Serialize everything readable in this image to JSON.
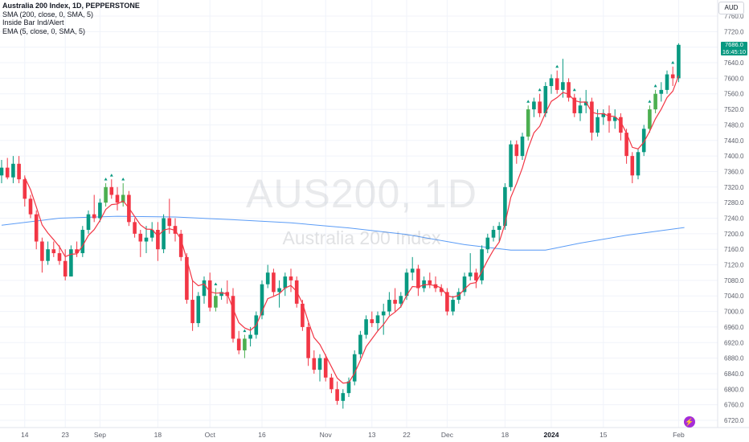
{
  "legend": {
    "title": "Australia 200 Index, 1D, PEPPERSTONE",
    "indicators": [
      "SMA (200, close, 0, SMA, 5)",
      "Inside Bar Ind/Alert",
      "EMA (5, close, 0, SMA, 5)"
    ]
  },
  "watermark": {
    "symbol": "AUS200, 1D",
    "name": "Australia 200 Index"
  },
  "currency": "AUD",
  "last_price": {
    "value": "7686.0",
    "countdown": "16:45:10",
    "color": "#089981"
  },
  "colors": {
    "up": "#089981",
    "down": "#f23645",
    "inside_up": "#4caf50",
    "sma": "#5b9cf6",
    "ema": "#f23645",
    "inside_marker": "#089981"
  },
  "chart_data": {
    "type": "candlestick",
    "title": "Australia 200 Index, 1D, PEPPERSTONE",
    "y_axis": {
      "range": [
        6700,
        7790
      ],
      "ticks": [
        7760,
        7720,
        7680,
        7640,
        7600,
        7560,
        7520,
        7480,
        7440,
        7400,
        7360,
        7320,
        7280,
        7240,
        7200,
        7160,
        7120,
        7080,
        7040,
        7000,
        6960,
        6920,
        6880,
        6840,
        6800,
        6760,
        6720
      ],
      "tick_labels": [
        "7760.0",
        "7720.0",
        "7680.0",
        "7640.0",
        "7600.0",
        "7560.0",
        "7520.0",
        "7480.0",
        "7440.0",
        "7400.0",
        "7360.0",
        "7320.0",
        "7280.0",
        "7240.0",
        "7200.0",
        "7160.0",
        "7120.0",
        "7080.0",
        "7040.0",
        "7000.0",
        "6960.0",
        "6920.0",
        "6880.0",
        "6840.0",
        "6800.0",
        "6760.0",
        "6720.0"
      ]
    },
    "x_axis": {
      "ticks": [
        {
          "index": 4,
          "label": "14",
          "bold": false
        },
        {
          "index": 11,
          "label": "23",
          "bold": false
        },
        {
          "index": 17,
          "label": "Sep",
          "bold": false
        },
        {
          "index": 27,
          "label": "18",
          "bold": false
        },
        {
          "index": 36,
          "label": "Oct",
          "bold": false
        },
        {
          "index": 45,
          "label": "16",
          "bold": false
        },
        {
          "index": 56,
          "label": "Nov",
          "bold": false
        },
        {
          "index": 64,
          "label": "13",
          "bold": false
        },
        {
          "index": 70,
          "label": "22",
          "bold": false
        },
        {
          "index": 77,
          "label": "Dec",
          "bold": false
        },
        {
          "index": 87,
          "label": "18",
          "bold": false
        },
        {
          "index": 95,
          "label": "2024",
          "bold": true
        },
        {
          "index": 104,
          "label": "15",
          "bold": false
        },
        {
          "index": 117,
          "label": "Feb",
          "bold": false
        }
      ]
    },
    "candles": [
      [
        7350,
        7390,
        7330,
        7370
      ],
      [
        7370,
        7395,
        7340,
        7345
      ],
      [
        7345,
        7400,
        7330,
        7380
      ],
      [
        7380,
        7400,
        7330,
        7340
      ],
      [
        7340,
        7350,
        7270,
        7290
      ],
      [
        7290,
        7300,
        7240,
        7250
      ],
      [
        7250,
        7260,
        7160,
        7180
      ],
      [
        7180,
        7190,
        7100,
        7130
      ],
      [
        7130,
        7180,
        7120,
        7160
      ],
      [
        7160,
        7180,
        7140,
        7150
      ],
      [
        7150,
        7170,
        7120,
        7130
      ],
      [
        7130,
        7160,
        7080,
        7090
      ],
      [
        7090,
        7170,
        7090,
        7160
      ],
      [
        7160,
        7180,
        7140,
        7150
      ],
      [
        7150,
        7220,
        7140,
        7210
      ],
      [
        7210,
        7260,
        7200,
        7250
      ],
      [
        7250,
        7300,
        7230,
        7240
      ],
      [
        7240,
        7290,
        7230,
        7280
      ],
      [
        7280,
        7330,
        7270,
        7320
      ],
      [
        7320,
        7340,
        7290,
        7300
      ],
      [
        7300,
        7320,
        7260,
        7280
      ],
      [
        7280,
        7330,
        7270,
        7300
      ],
      [
        7300,
        7310,
        7220,
        7230
      ],
      [
        7230,
        7240,
        7190,
        7200
      ],
      [
        7200,
        7210,
        7140,
        7180
      ],
      [
        7180,
        7220,
        7150,
        7190
      ],
      [
        7190,
        7230,
        7180,
        7210
      ],
      [
        7210,
        7230,
        7130,
        7160
      ],
      [
        7160,
        7250,
        7150,
        7240
      ],
      [
        7240,
        7290,
        7200,
        7220
      ],
      [
        7220,
        7240,
        7180,
        7200
      ],
      [
        7200,
        7210,
        7130,
        7140
      ],
      [
        7140,
        7150,
        7020,
        7030
      ],
      [
        7030,
        7080,
        6950,
        6970
      ],
      [
        6970,
        7050,
        6960,
        7040
      ],
      [
        7040,
        7090,
        7020,
        7080
      ],
      [
        7080,
        7100,
        7000,
        7010
      ],
      [
        7010,
        7060,
        7000,
        7040
      ],
      [
        7040,
        7060,
        7030,
        7050
      ],
      [
        7050,
        7080,
        7020,
        7040
      ],
      [
        7040,
        7060,
        6920,
        6930
      ],
      [
        6930,
        6950,
        6890,
        6900
      ],
      [
        6900,
        6940,
        6880,
        6930
      ],
      [
        6930,
        6960,
        6910,
        6940
      ],
      [
        6940,
        7000,
        6930,
        6990
      ],
      [
        6990,
        7080,
        6980,
        7070
      ],
      [
        7070,
        7120,
        7060,
        7100
      ],
      [
        7100,
        7110,
        7040,
        7050
      ],
      [
        7050,
        7080,
        7010,
        7060
      ],
      [
        7060,
        7100,
        7040,
        7090
      ],
      [
        7090,
        7110,
        7050,
        7080
      ],
      [
        7080,
        7090,
        7010,
        7020
      ],
      [
        7020,
        7030,
        6950,
        6960
      ],
      [
        6960,
        6970,
        6860,
        6880
      ],
      [
        6880,
        6900,
        6840,
        6850
      ],
      [
        6850,
        6890,
        6820,
        6880
      ],
      [
        6880,
        6890,
        6820,
        6830
      ],
      [
        6830,
        6840,
        6790,
        6800
      ],
      [
        6800,
        6820,
        6760,
        6770
      ],
      [
        6770,
        6800,
        6750,
        6790
      ],
      [
        6790,
        6830,
        6780,
        6820
      ],
      [
        6820,
        6900,
        6810,
        6890
      ],
      [
        6890,
        6950,
        6880,
        6940
      ],
      [
        6940,
        6990,
        6930,
        6980
      ],
      [
        6980,
        7000,
        6960,
        6970
      ],
      [
        6970,
        7000,
        6950,
        6990
      ],
      [
        6990,
        7020,
        6940,
        7000
      ],
      [
        7000,
        7050,
        6990,
        7030
      ],
      [
        7030,
        7060,
        7000,
        7020
      ],
      [
        7020,
        7050,
        7010,
        7040
      ],
      [
        7040,
        7110,
        7030,
        7100
      ],
      [
        7100,
        7140,
        7080,
        7110
      ],
      [
        7110,
        7120,
        7040,
        7060
      ],
      [
        7060,
        7090,
        7050,
        7080
      ],
      [
        7080,
        7100,
        7060,
        7070
      ],
      [
        7070,
        7090,
        7050,
        7060
      ],
      [
        7060,
        7070,
        7040,
        7050
      ],
      [
        7050,
        7060,
        6990,
        7000
      ],
      [
        7000,
        7040,
        6990,
        7030
      ],
      [
        7030,
        7060,
        7020,
        7050
      ],
      [
        7050,
        7100,
        7040,
        7090
      ],
      [
        7090,
        7150,
        7080,
        7100
      ],
      [
        7100,
        7110,
        7060,
        7080
      ],
      [
        7080,
        7170,
        7070,
        7160
      ],
      [
        7160,
        7200,
        7150,
        7190
      ],
      [
        7190,
        7220,
        7180,
        7210
      ],
      [
        7210,
        7230,
        7180,
        7220
      ],
      [
        7220,
        7330,
        7210,
        7320
      ],
      [
        7320,
        7440,
        7310,
        7430
      ],
      [
        7430,
        7440,
        7380,
        7400
      ],
      [
        7400,
        7460,
        7390,
        7450
      ],
      [
        7450,
        7530,
        7440,
        7520
      ],
      [
        7520,
        7550,
        7500,
        7540
      ],
      [
        7540,
        7560,
        7500,
        7510
      ],
      [
        7510,
        7590,
        7500,
        7580
      ],
      [
        7580,
        7610,
        7560,
        7600
      ],
      [
        7600,
        7620,
        7560,
        7570
      ],
      [
        7570,
        7650,
        7550,
        7590
      ],
      [
        7590,
        7600,
        7540,
        7550
      ],
      [
        7550,
        7560,
        7500,
        7510
      ],
      [
        7510,
        7550,
        7490,
        7530
      ],
      [
        7530,
        7570,
        7510,
        7540
      ],
      [
        7540,
        7550,
        7440,
        7460
      ],
      [
        7460,
        7520,
        7450,
        7500
      ],
      [
        7500,
        7520,
        7480,
        7510
      ],
      [
        7510,
        7530,
        7460,
        7490
      ],
      [
        7490,
        7520,
        7470,
        7500
      ],
      [
        7500,
        7510,
        7440,
        7460
      ],
      [
        7460,
        7470,
        7380,
        7400
      ],
      [
        7400,
        7410,
        7330,
        7350
      ],
      [
        7350,
        7420,
        7340,
        7410
      ],
      [
        7410,
        7480,
        7400,
        7470
      ],
      [
        7470,
        7530,
        7460,
        7520
      ],
      [
        7520,
        7570,
        7510,
        7560
      ],
      [
        7560,
        7590,
        7540,
        7570
      ],
      [
        7570,
        7620,
        7560,
        7610
      ],
      [
        7610,
        7630,
        7580,
        7600
      ],
      [
        7600,
        7690,
        7590,
        7686
      ]
    ],
    "sma_200": [
      [
        0,
        7222
      ],
      [
        10,
        7240
      ],
      [
        20,
        7245
      ],
      [
        30,
        7243
      ],
      [
        40,
        7236
      ],
      [
        50,
        7228
      ],
      [
        60,
        7215
      ],
      [
        70,
        7198
      ],
      [
        80,
        7172
      ],
      [
        88,
        7158
      ],
      [
        94,
        7158
      ],
      [
        100,
        7176
      ],
      [
        108,
        7196
      ],
      [
        118,
        7216
      ]
    ],
    "ema_5_label": "EMA (5, close, 0, SMA, 5)",
    "inside_bar_markers": [
      18,
      19,
      21,
      37,
      42,
      91,
      93,
      96,
      99,
      112,
      113,
      116
    ]
  }
}
